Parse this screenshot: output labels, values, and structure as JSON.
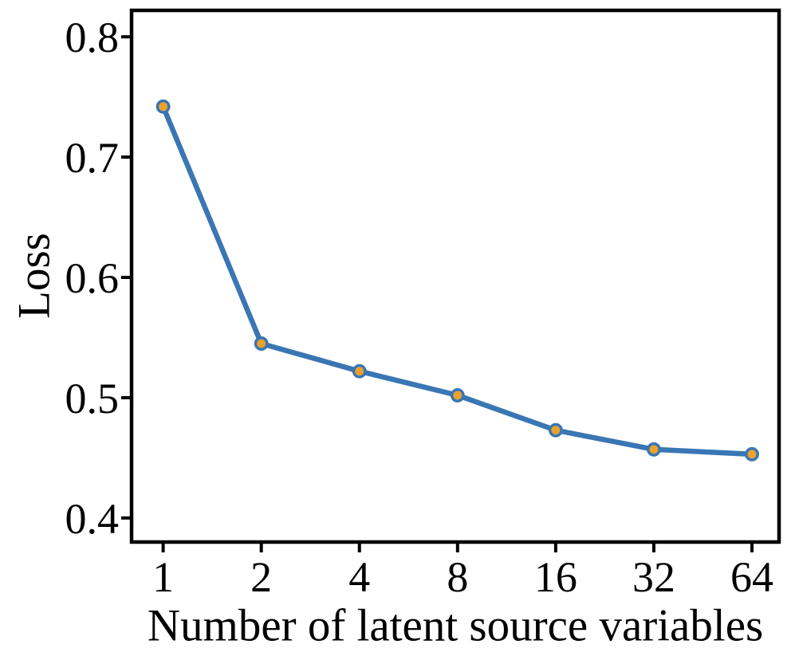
{
  "chart_data": {
    "type": "line",
    "x": [
      1,
      2,
      4,
      8,
      16,
      32,
      64
    ],
    "values": [
      0.742,
      0.545,
      0.522,
      0.502,
      0.473,
      0.457,
      0.453
    ],
    "title": "",
    "xlabel": "Number of latent source variables",
    "ylabel": "Loss",
    "x_scale": "log2",
    "xlim": [
      0.8,
      77.5
    ],
    "ylim": [
      0.38,
      0.822
    ],
    "x_ticks": [
      1,
      2,
      4,
      8,
      16,
      32,
      64
    ],
    "x_tick_labels": [
      "1",
      "2",
      "4",
      "8",
      "16",
      "32",
      "64"
    ],
    "y_ticks": [
      0.4,
      0.5,
      0.6,
      0.7,
      0.8
    ],
    "y_tick_labels": [
      "0.4",
      "0.5",
      "0.6",
      "0.7",
      "0.8"
    ],
    "grid": false,
    "legend_position": "none",
    "colors": {
      "line": "#3A76B4",
      "marker_face": "#E9A22D",
      "marker_edge": "#3A76B4",
      "axis": "#000000",
      "background": "#FFFFFF"
    }
  }
}
